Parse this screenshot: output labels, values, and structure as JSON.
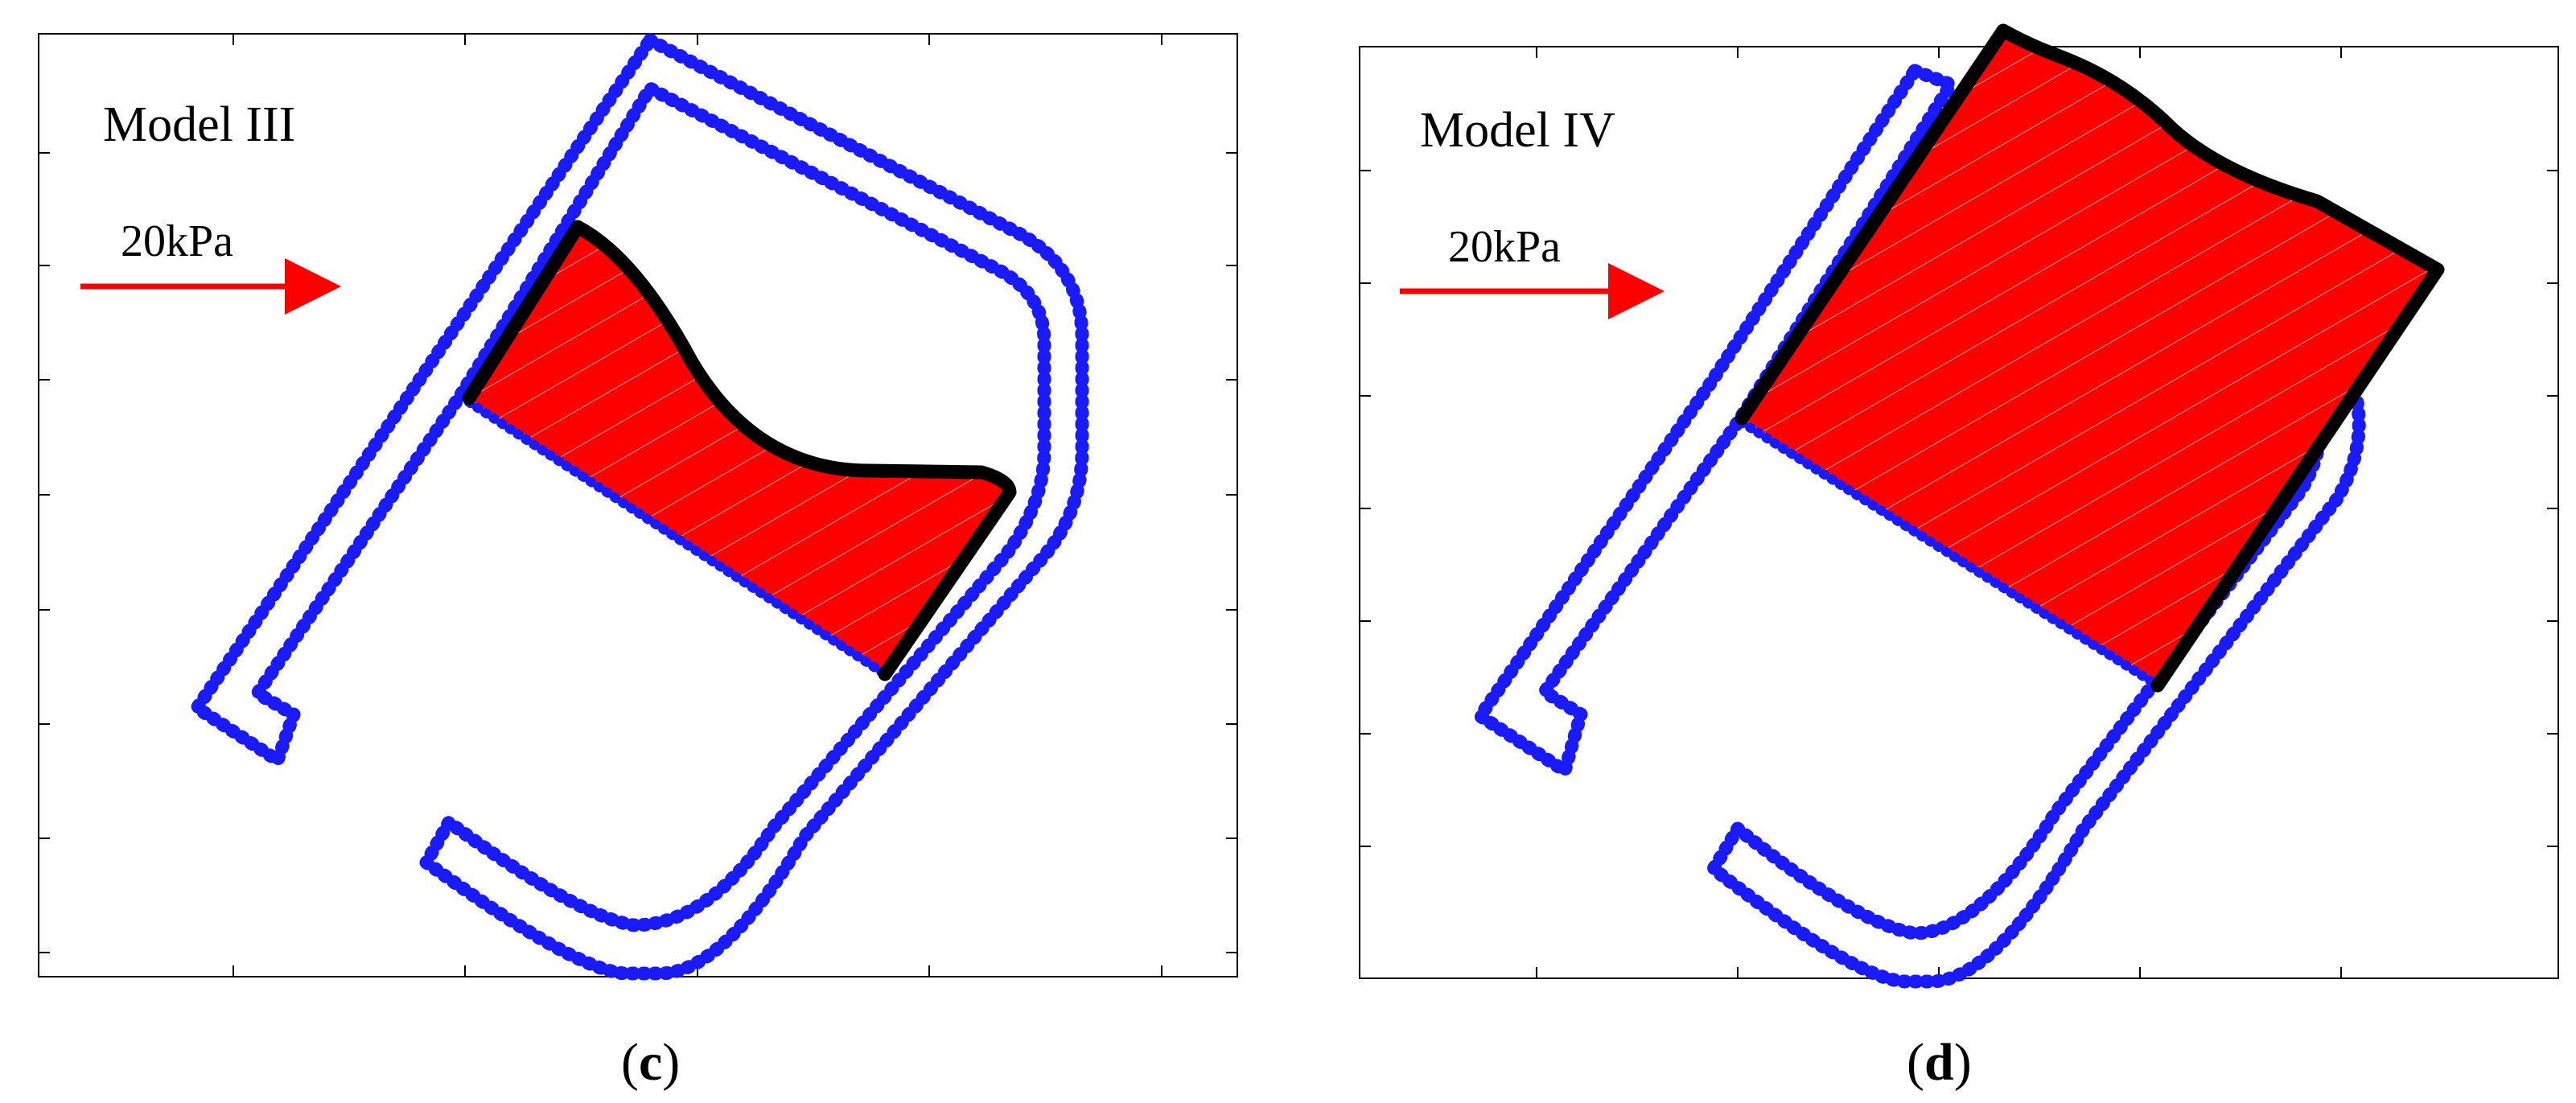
{
  "panels": [
    {
      "id": "c",
      "title": "Model III",
      "load_label": "20kPa",
      "caption_open": "(",
      "caption_letter": "c",
      "caption_close": ")"
    },
    {
      "id": "d",
      "title": "Model IV",
      "load_label": "20kPa",
      "caption_open": "(",
      "caption_letter": "d",
      "caption_close": ")"
    }
  ],
  "colors": {
    "boundary": "#1a1aff",
    "sliding_mass": "#ff0000",
    "slip_surface": "#000000",
    "load_arrow": "#ff0000",
    "axes": "#000000"
  }
}
